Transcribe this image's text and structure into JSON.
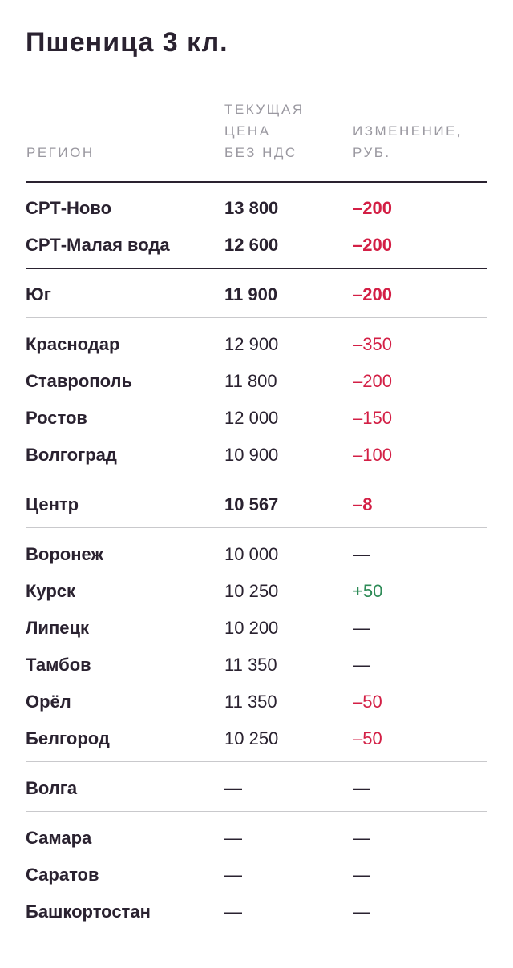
{
  "title": "Пшеница 3 кл.",
  "columns": {
    "region": "РЕГИОН",
    "price": [
      "ТЕКУЩАЯ",
      "ЦЕНА",
      "БЕЗ НДС"
    ],
    "change": [
      "ИЗМЕНЕНИЕ,",
      "РУБ."
    ]
  },
  "colors": {
    "negative": "#d31f45",
    "positive": "#2e8b57",
    "text": "#2a2230",
    "header": "#9a98a0"
  },
  "rows": [
    {
      "region": "СРТ-Ново",
      "price": "13 800",
      "change": "–200",
      "sign": "neg",
      "summary": true
    },
    {
      "region": "СРТ-Малая вода",
      "price": "12 600",
      "change": "–200",
      "sign": "neg",
      "summary": true
    },
    {
      "region": "Юг",
      "price": "11 900",
      "change": "–200",
      "sign": "neg",
      "summary": true
    },
    {
      "region": "Краснодар",
      "price": "12 900",
      "change": "–350",
      "sign": "neg",
      "summary": false
    },
    {
      "region": "Ставрополь",
      "price": "11 800",
      "change": "–200",
      "sign": "neg",
      "summary": false
    },
    {
      "region": "Ростов",
      "price": "12 000",
      "change": "–150",
      "sign": "neg",
      "summary": false
    },
    {
      "region": "Волгоград",
      "price": "10 900",
      "change": "–100",
      "sign": "neg",
      "summary": false
    },
    {
      "region": "Центр",
      "price": "10 567",
      "change": "–8",
      "sign": "neg",
      "summary": true
    },
    {
      "region": "Воронеж",
      "price": "10 000",
      "change": "—",
      "sign": "nil",
      "summary": false
    },
    {
      "region": "Курск",
      "price": "10 250",
      "change": "+50",
      "sign": "pos",
      "summary": false
    },
    {
      "region": "Липецк",
      "price": "10 200",
      "change": "—",
      "sign": "nil",
      "summary": false
    },
    {
      "region": "Тамбов",
      "price": "11 350",
      "change": "—",
      "sign": "nil",
      "summary": false
    },
    {
      "region": "Орёл",
      "price": "11 350",
      "change": "–50",
      "sign": "neg",
      "summary": false
    },
    {
      "region": "Белгород",
      "price": "10 250",
      "change": "–50",
      "sign": "neg",
      "summary": false
    },
    {
      "region": "Волга",
      "price": "—",
      "change": "—",
      "sign": "nil",
      "summary": true
    },
    {
      "region": "Самара",
      "price": "—",
      "change": "—",
      "sign": "nil",
      "summary": false
    },
    {
      "region": "Саратов",
      "price": "—",
      "change": "—",
      "sign": "nil",
      "summary": false
    },
    {
      "region": "Башкортостан",
      "price": "—",
      "change": "—",
      "sign": "nil",
      "summary": false
    }
  ]
}
